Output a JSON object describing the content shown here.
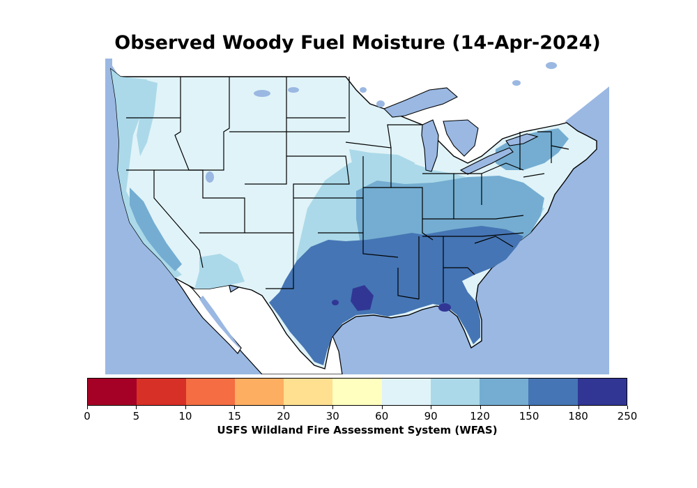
{
  "title": "Observed Woody Fuel Moisture (14-Apr-2024)",
  "colorbar": {
    "label": "USFS Wildland Fire Assessment System (WFAS)",
    "ticks": [
      "0",
      "5",
      "10",
      "15",
      "20",
      "30",
      "60",
      "90",
      "120",
      "150",
      "180",
      "250"
    ],
    "colors": [
      "#a50026",
      "#d73027",
      "#f46d43",
      "#fdae61",
      "#fee090",
      "#ffffbf",
      "#e0f3f8",
      "#abd9e9",
      "#74add1",
      "#4575b4",
      "#313695"
    ]
  },
  "map": {
    "region": "Contiguous United States",
    "water_color": "#9ab8e2",
    "land_outside_color": "#ffffff"
  }
}
